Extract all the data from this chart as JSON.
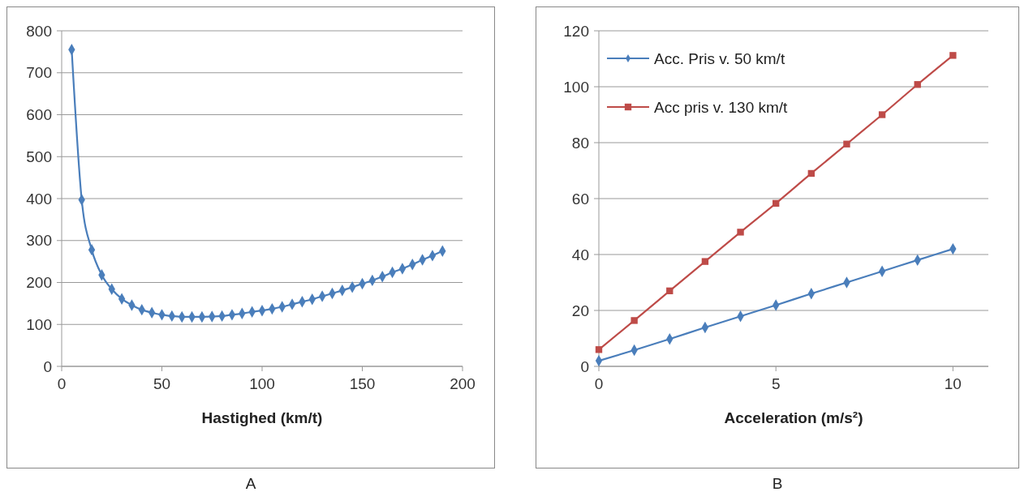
{
  "chart_data": [
    {
      "type": "line",
      "xlabel": "Hastighed (km/t)",
      "annotations": [
        "A"
      ],
      "x": [
        5,
        10,
        15,
        20,
        25,
        30,
        35,
        40,
        45,
        50,
        55,
        60,
        65,
        70,
        75,
        80,
        85,
        90,
        95,
        100,
        105,
        110,
        115,
        120,
        125,
        130,
        135,
        140,
        145,
        150,
        155,
        160,
        165,
        170,
        175,
        180,
        185,
        190
      ],
      "series": [
        {
          "color": "#4a7ebb",
          "marker": "diamond",
          "values": [
            755,
            397,
            278,
            218,
            184,
            161,
            146,
            135,
            128,
            123,
            120,
            118,
            118,
            118,
            119,
            120,
            123,
            126,
            130,
            133,
            137,
            142,
            148,
            154,
            160,
            167,
            174,
            181,
            189,
            197,
            205,
            214,
            224,
            233,
            243,
            254,
            264,
            275
          ]
        }
      ],
      "xlim": [
        0,
        200
      ],
      "xticks": [
        0,
        50,
        100,
        150,
        200
      ],
      "ylim": [
        0,
        800
      ],
      "yticks": [
        0,
        100,
        200,
        300,
        400,
        500,
        600,
        700,
        800
      ],
      "grid": "y",
      "legend": false
    },
    {
      "type": "line",
      "xlabel": "Acceleration (m/s²)",
      "annotations": [
        "B"
      ],
      "x": [
        0,
        1,
        2,
        3,
        4,
        5,
        6,
        7,
        8,
        9,
        10
      ],
      "series": [
        {
          "name": "Acc. Pris v. 50 km/t",
          "color": "#4a7ebb",
          "marker": "diamond",
          "values": [
            2,
            5.8,
            9.8,
            13.9,
            17.9,
            21.9,
            26,
            30,
            34,
            38,
            42
          ]
        },
        {
          "name": "Acc pris v. 130 km/t",
          "color": "#be4b48",
          "marker": "square",
          "values": [
            6,
            16.4,
            27,
            37.5,
            48,
            58.3,
            69,
            79.5,
            90,
            100.8,
            111.2
          ]
        }
      ],
      "xlim": [
        0,
        11
      ],
      "xticks": [
        0,
        5,
        10
      ],
      "ylim": [
        0,
        120
      ],
      "yticks": [
        0,
        20,
        40,
        60,
        80,
        100,
        120
      ],
      "grid": "y",
      "legend": "top left"
    }
  ]
}
